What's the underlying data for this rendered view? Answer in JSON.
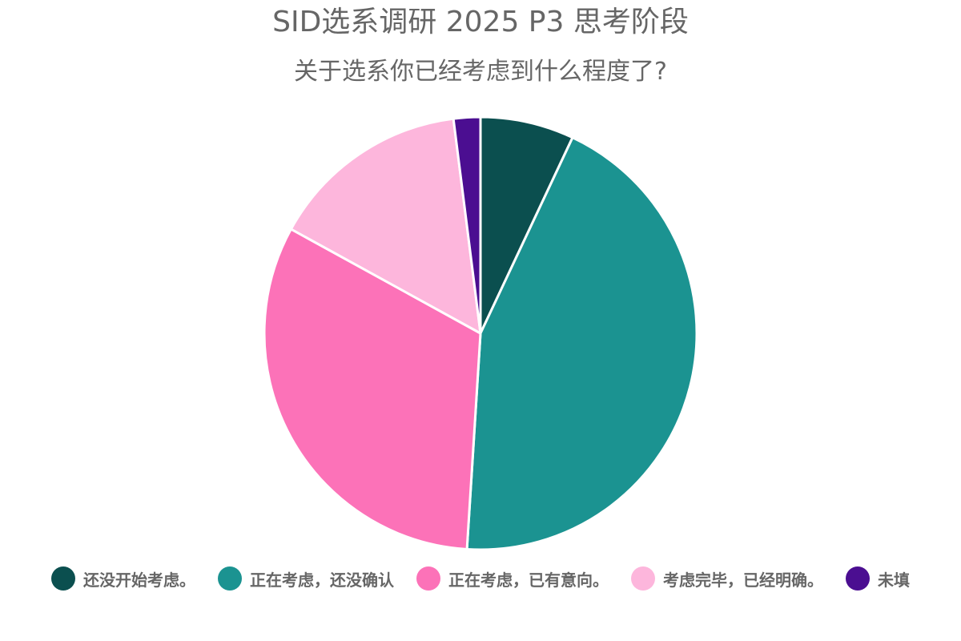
{
  "chart_data": {
    "type": "pie",
    "title": "SID选系调研 2025 P3 思考阶段",
    "subtitle": "关于选系你已经考虑到什么程度了?",
    "legend_position": "bottom",
    "start_angle_deg": 0,
    "direction": "clockwise",
    "slices": [
      {
        "label": "还没开始考虑。",
        "value": 7,
        "color": "#0b4f4f"
      },
      {
        "label": "正在考虑，还没确认",
        "value": 44,
        "color": "#1b9391"
      },
      {
        "label": "正在考虑，已有意向。",
        "value": 32,
        "color": "#fc72b8"
      },
      {
        "label": "考虑完毕，已经明确。",
        "value": 15,
        "color": "#fdb6dc"
      },
      {
        "label": "未填",
        "value": 2,
        "color": "#4b0e91"
      }
    ]
  }
}
